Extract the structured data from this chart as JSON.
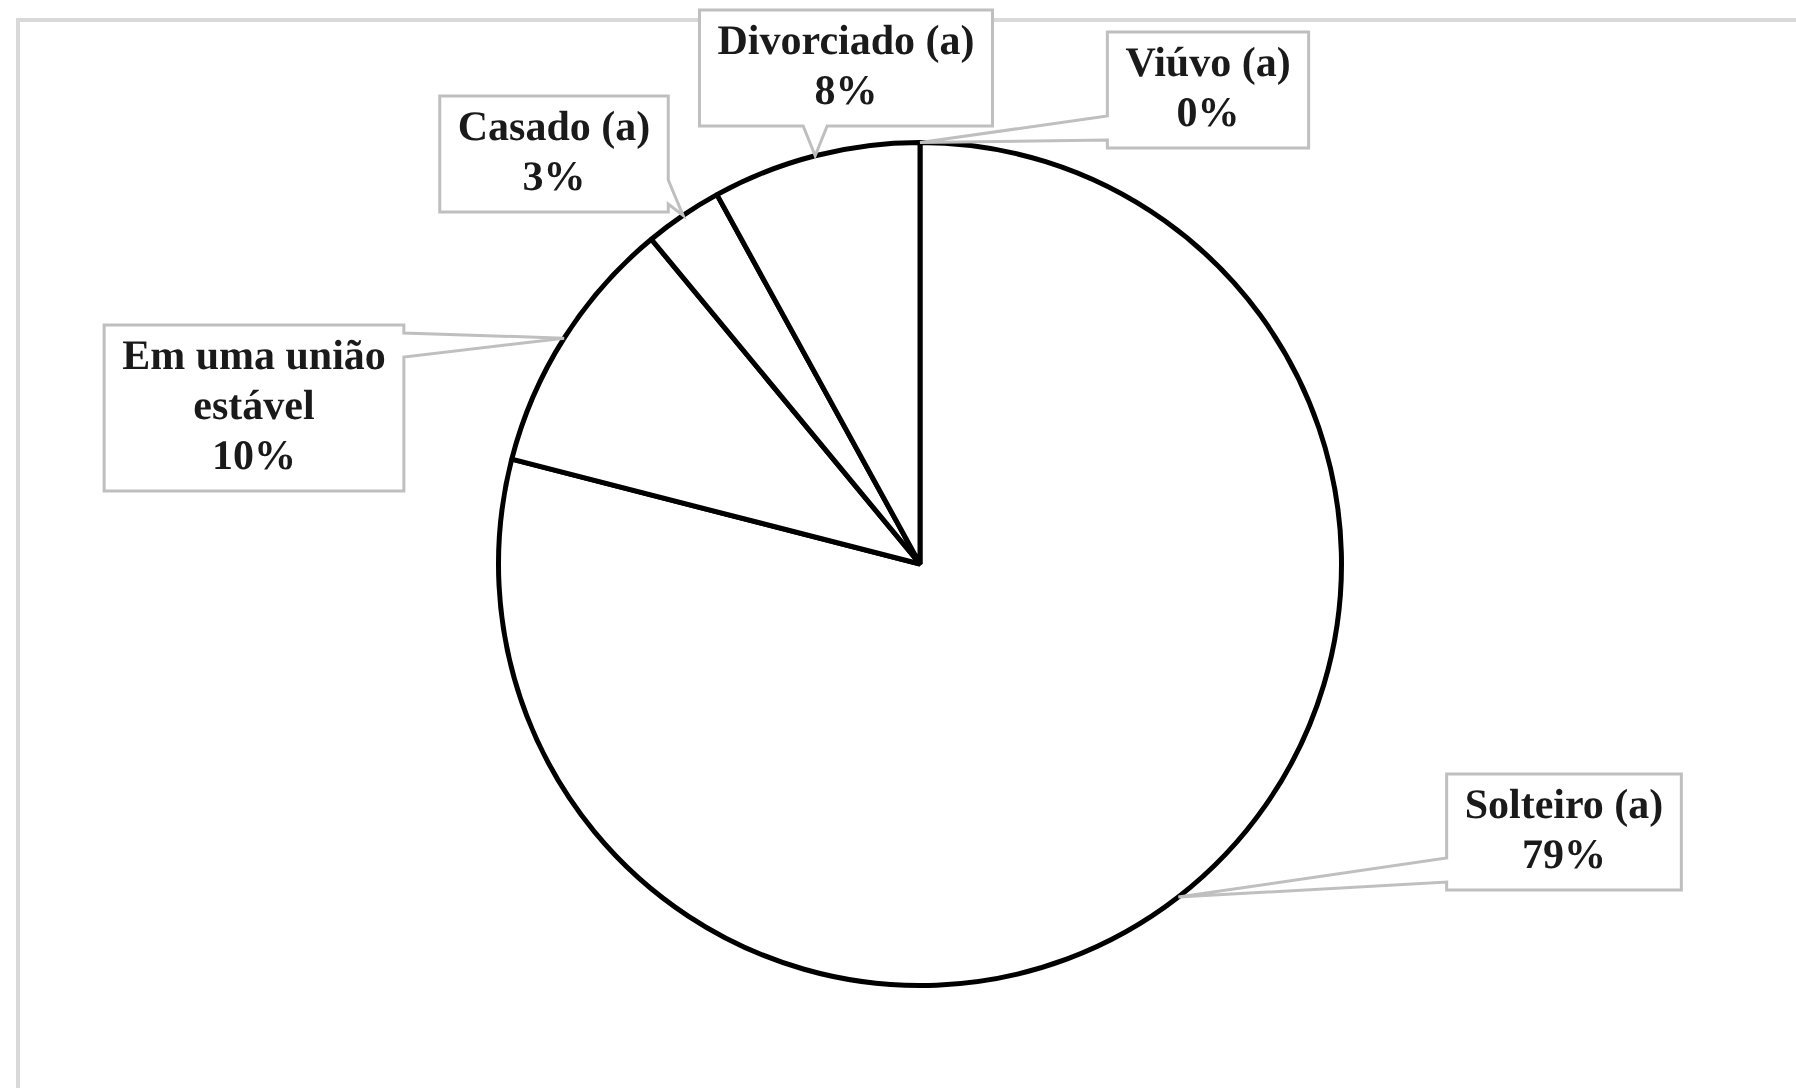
{
  "chart_data": {
    "type": "pie",
    "categories": [
      "Solteiro (a)",
      "Em uma união estável",
      "Casado (a)",
      "Divorciado (a)",
      "Viúvo (a)"
    ],
    "values": [
      79,
      10,
      3,
      8,
      0
    ],
    "value_labels": [
      "79%",
      "10%",
      "3%",
      "8%",
      "0%"
    ],
    "colors": [
      "#ffffff",
      "#ffffff",
      "#ffffff",
      "#ffffff",
      "#ffffff"
    ]
  }
}
